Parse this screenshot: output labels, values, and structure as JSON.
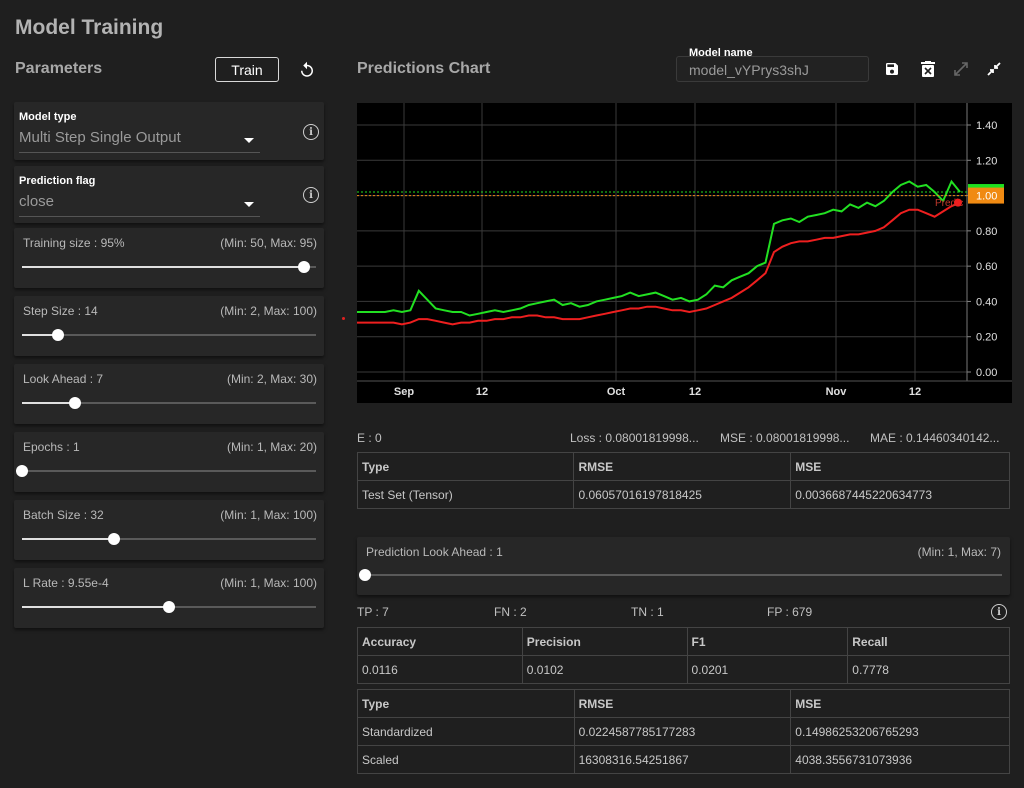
{
  "page_title": "Model Training",
  "parameters": {
    "heading": "Parameters",
    "train_label": "Train",
    "model_type": {
      "label": "Model type",
      "value": "Multi Step Single Output"
    },
    "prediction_flag": {
      "label": "Prediction flag",
      "value": "close"
    },
    "sliders": [
      {
        "label": "Training size : 95%",
        "range": "(Min: 50, Max: 95)",
        "fraction": 0.958
      },
      {
        "label": "Step Size : 14",
        "range": "(Min: 2, Max: 100)",
        "fraction": 0.122
      },
      {
        "label": "Look Ahead : 7",
        "range": "(Min: 2, Max: 30)",
        "fraction": 0.179
      },
      {
        "label": "Epochs : 1",
        "range": "(Min: 1, Max: 20)",
        "fraction": 0.0
      },
      {
        "label": "Batch Size : 32",
        "range": "(Min: 1, Max: 100)",
        "fraction": 0.313
      },
      {
        "label": "L Rate : 9.55e-4",
        "range": "(Min: 1, Max: 100)",
        "fraction": 0.5
      }
    ]
  },
  "chart_panel": {
    "heading": "Predictions Chart",
    "model_name_label": "Model name",
    "model_name_value": "model_vYPrys3shJ"
  },
  "chart_data": {
    "type": "line",
    "x_ticks": [
      "Sep",
      "12",
      "Oct",
      "12",
      "Nov",
      "12"
    ],
    "y_ticks": [
      "1.40",
      "1.20",
      "1.00",
      "0.80",
      "0.60",
      "0.40",
      "0.20",
      "0.00"
    ],
    "ylim": [
      0,
      1.4
    ],
    "series": [
      {
        "color": "#22e022",
        "values": [
          0.34,
          0.35,
          0.34,
          0.35,
          0.46,
          0.41,
          0.36,
          0.35,
          0.34,
          0.34,
          0.32,
          0.33,
          0.34,
          0.35,
          0.34,
          0.35,
          0.36,
          0.38,
          0.39,
          0.4,
          0.41,
          0.38,
          0.39,
          0.37,
          0.38,
          0.4,
          0.41,
          0.42,
          0.43,
          0.45,
          0.43,
          0.44,
          0.45,
          0.43,
          0.41,
          0.42,
          0.4,
          0.41,
          0.44,
          0.49,
          0.48,
          0.52,
          0.54,
          0.56,
          0.6,
          0.62,
          0.84,
          0.86,
          0.87,
          0.85,
          0.88,
          0.89,
          0.9,
          0.92,
          0.91,
          0.95,
          0.93,
          0.96,
          0.94,
          0.97,
          1.02,
          1.06,
          1.08,
          1.05,
          1.06,
          1.02,
          0.97,
          1.08,
          1.02
        ]
      },
      {
        "color": "#ee1f1f",
        "values": [
          0.28,
          0.28,
          0.27,
          0.28,
          0.3,
          0.3,
          0.29,
          0.28,
          0.27,
          0.28,
          0.28,
          0.29,
          0.29,
          0.3,
          0.3,
          0.31,
          0.31,
          0.32,
          0.32,
          0.31,
          0.31,
          0.3,
          0.3,
          0.3,
          0.31,
          0.32,
          0.33,
          0.34,
          0.35,
          0.36,
          0.36,
          0.37,
          0.37,
          0.36,
          0.35,
          0.35,
          0.34,
          0.35,
          0.36,
          0.38,
          0.4,
          0.42,
          0.45,
          0.48,
          0.52,
          0.56,
          0.68,
          0.71,
          0.73,
          0.74,
          0.74,
          0.75,
          0.76,
          0.76,
          0.77,
          0.78,
          0.78,
          0.79,
          0.8,
          0.82,
          0.86,
          0.9,
          0.92,
          0.92,
          0.9,
          0.88,
          0.91,
          0.94,
          0.96
        ]
      }
    ],
    "last_value_labels": [
      {
        "text": "1.02",
        "value": 1.02,
        "bg": "#1fe01f",
        "fg": "#000000"
      },
      {
        "text": "1.00",
        "value": 1.0,
        "bg": "#f08a12",
        "fg": "#ffffff"
      }
    ],
    "overlay_text": "Predic",
    "grid": true
  },
  "metrics_row": {
    "e": "E : 0",
    "loss": "Loss : 0.08001819998...",
    "mse": "MSE : 0.08001819998...",
    "mae": "MAE : 0.14460340142..."
  },
  "test_table": {
    "headers": [
      "Type",
      "RMSE",
      "MSE"
    ],
    "rows": [
      [
        "Test Set (Tensor)",
        "0.06057016197818425",
        "0.0036687445220634773"
      ]
    ]
  },
  "look_ahead": {
    "label": "Prediction Look Ahead : 1",
    "range": "(Min: 1, Max: 7)",
    "fraction": 0.0
  },
  "confusion": {
    "tp": "TP : 7",
    "fn": "FN : 2",
    "tn": "TN : 1",
    "fp": "FP : 679"
  },
  "accuracy_table": {
    "headers": [
      "Accuracy",
      "Precision",
      "F1",
      "Recall"
    ],
    "rows": [
      [
        "0.0116",
        "0.0102",
        "0.0201",
        "0.7778"
      ]
    ]
  },
  "error_table": {
    "headers": [
      "Type",
      "RMSE",
      "MSE"
    ],
    "rows": [
      [
        "Standardized",
        "0.0224587785177283",
        "0.14986253206765293"
      ],
      [
        "Scaled",
        "16308316.54251867",
        "4038.3556731073936"
      ]
    ]
  }
}
